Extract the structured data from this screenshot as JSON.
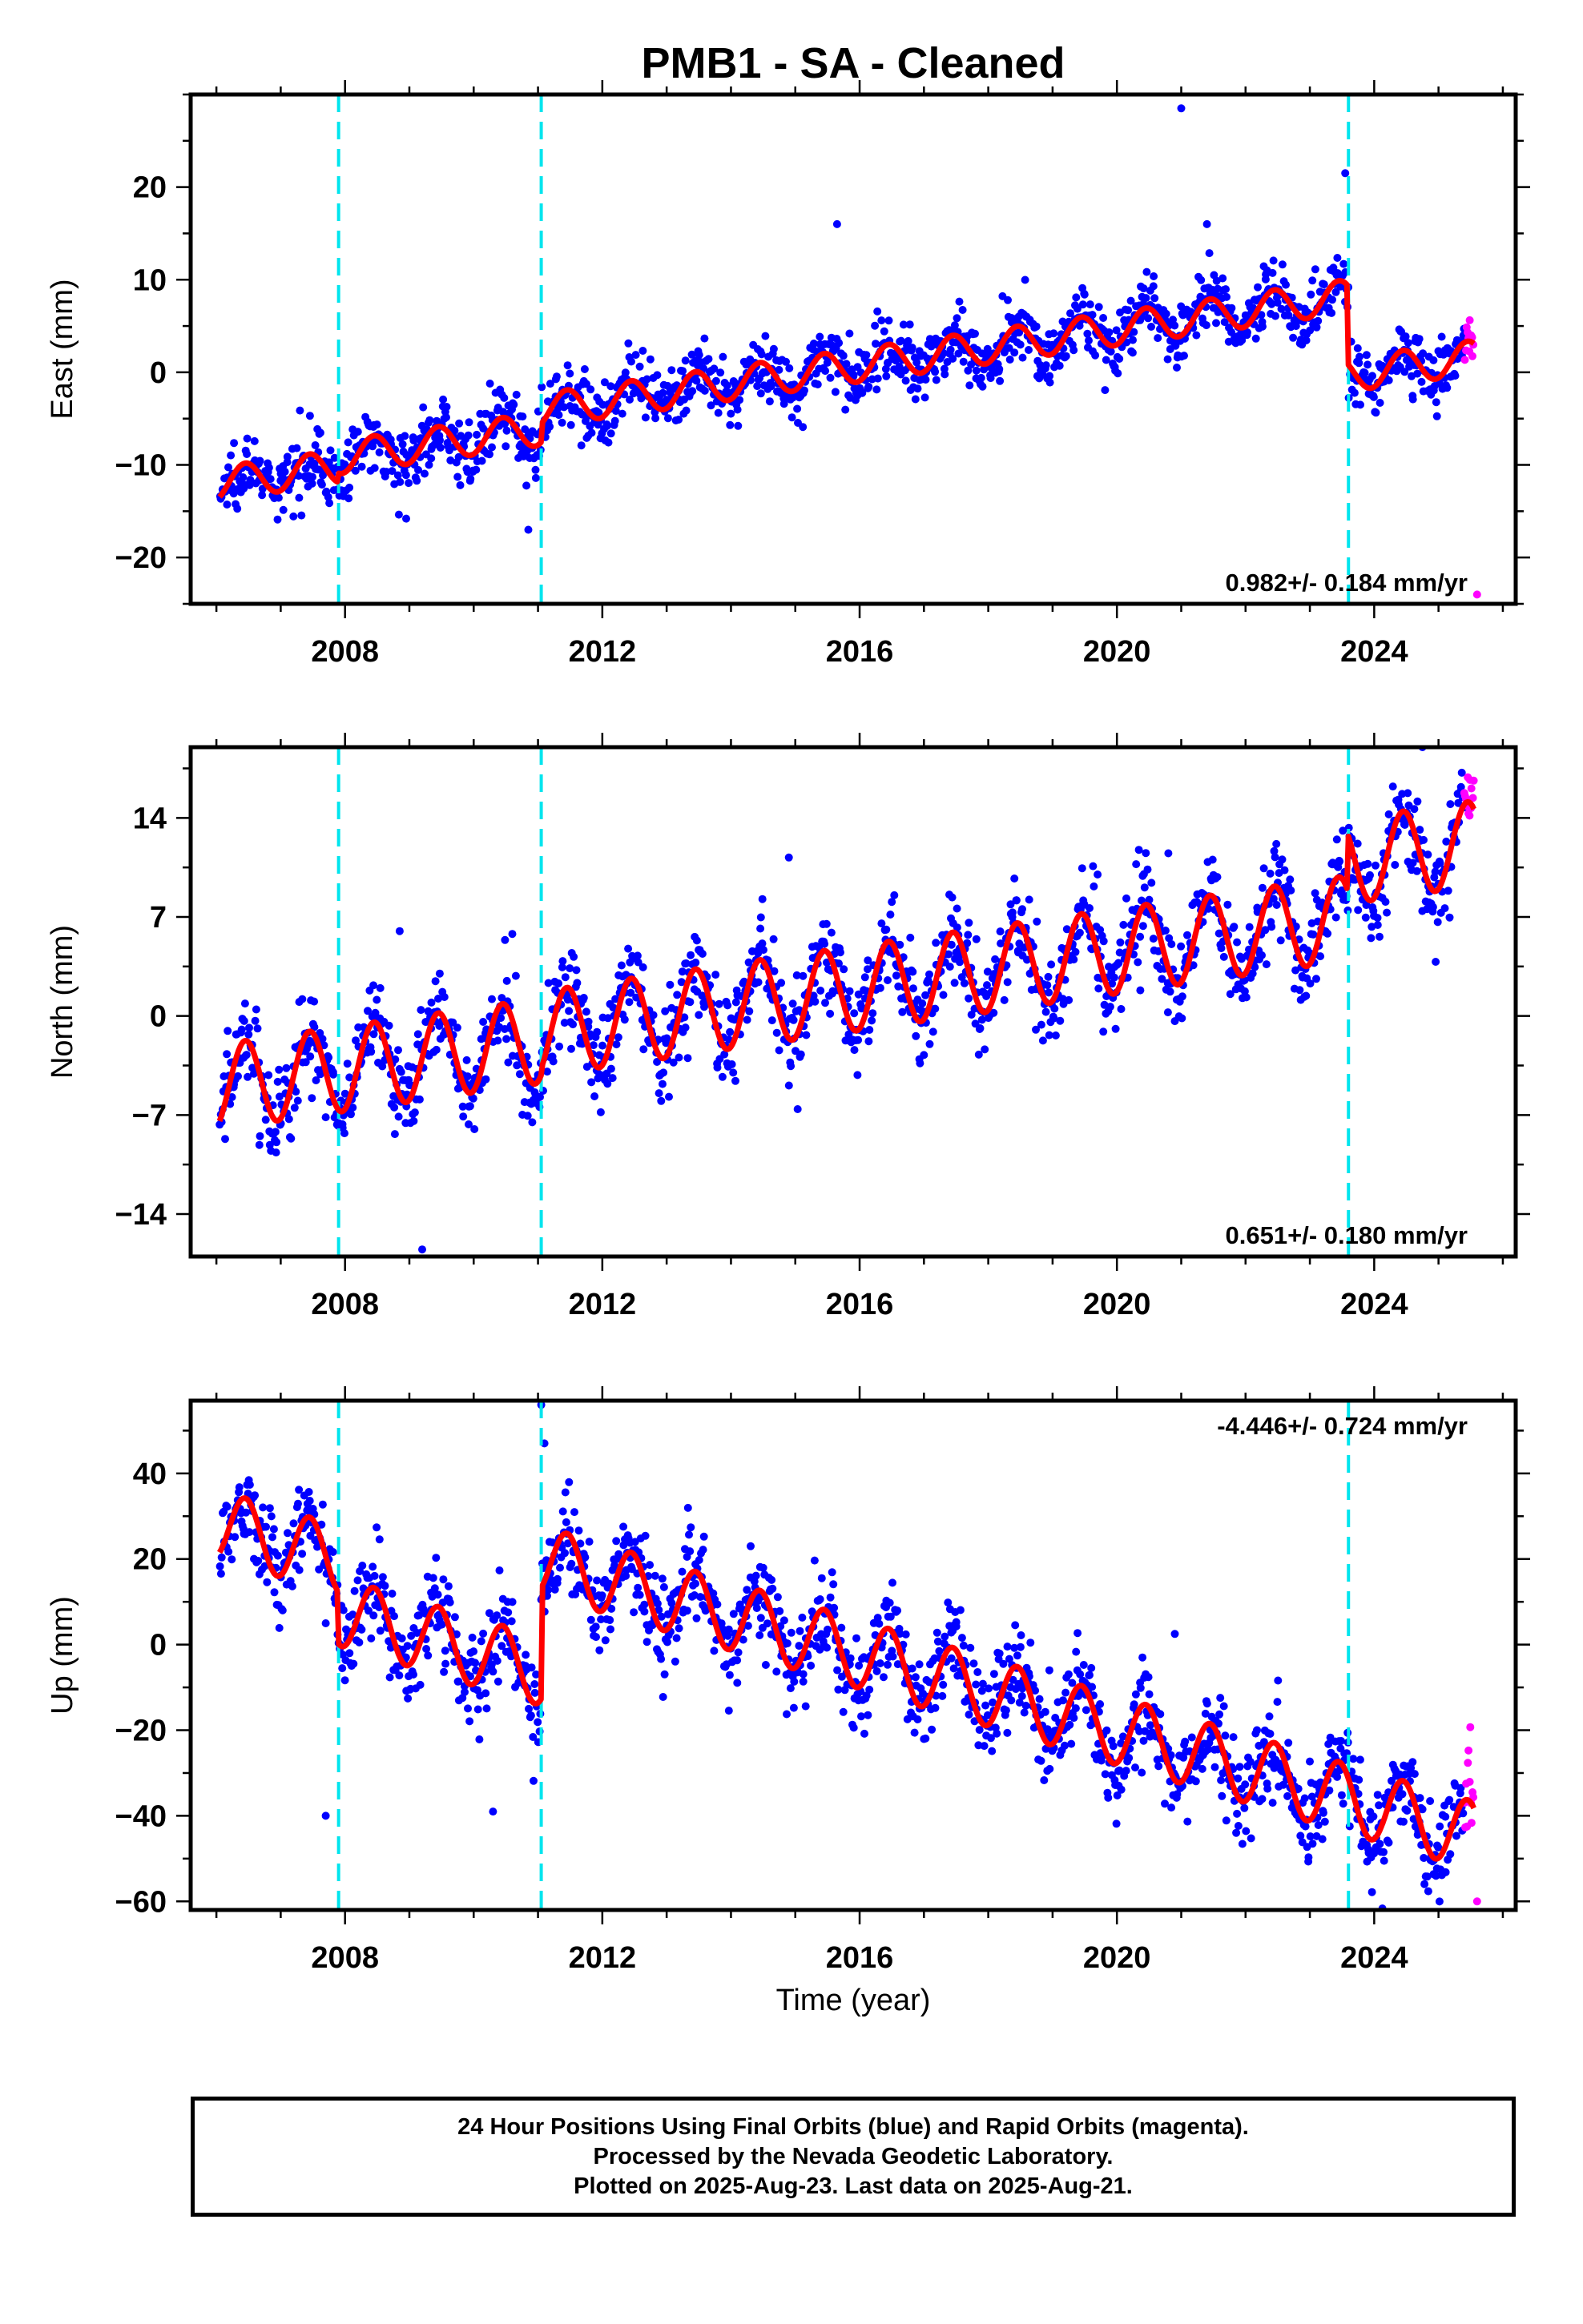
{
  "title": "PMB1  - SA - Cleaned",
  "xlabel": "Time (year)",
  "colors": {
    "final_orbits": "#0000ff",
    "rapid_orbits": "#ff00ff",
    "fit": "#ff0000",
    "break_lines": "#00e5ee"
  },
  "footer": {
    "line1": "24 Hour Positions Using Final Orbits (blue) and Rapid Orbits (magenta).",
    "line2": "Processed by the Nevada Geodetic Laboratory.",
    "line3": "Plotted on 2025-Aug-23. Last data on 2025-Aug-21."
  },
  "chart_data": [
    {
      "type": "scatter",
      "component": "east",
      "ylabel": "East (mm)",
      "rate_label": "0.982+/- 0.184 mm/yr",
      "rate_position": "bottom-right",
      "xlim": [
        2005.6,
        2026.2
      ],
      "ylim": [
        -25,
        30
      ],
      "xticks": [
        2008,
        2012,
        2016,
        2020,
        2024
      ],
      "yticks": [
        -20,
        -10,
        0,
        10,
        20
      ],
      "x_tick_labels": [
        "2008",
        "2012",
        "2016",
        "2020",
        "2024"
      ],
      "y_tick_labels": [
        "−20",
        "−10",
        "0",
        "10",
        "20"
      ],
      "break_lines_x": [
        2007.9,
        2011.05,
        2023.6
      ],
      "data_range": [
        2006.05,
        2025.55
      ],
      "rapid_start": 2025.4,
      "fit_start": [
        2006.05,
        -12
      ],
      "fit_rate": 0.982,
      "fit_seasonal_amplitude": 1.8,
      "fit_offsets": [
        [
          2007.9,
          1.0
        ],
        [
          2011.05,
          2.0
        ],
        [
          2023.6,
          -8.5
        ]
      ],
      "scatter_std": 1.7,
      "outliers": [
        [
          2021.0,
          28.5
        ],
        [
          2023.55,
          21.5
        ],
        [
          2015.65,
          16.0
        ],
        [
          2021.4,
          16.0
        ],
        [
          2010.85,
          -17.0
        ],
        [
          2025.6,
          -24.0
        ],
        [
          2008.95,
          -15.8
        ]
      ],
      "series": [
        {
          "name": "Final Orbits (blue)",
          "role": "final"
        },
        {
          "name": "Rapid Orbits (magenta)",
          "role": "rapid"
        },
        {
          "name": "",
          "role": "fit"
        }
      ]
    },
    {
      "type": "scatter",
      "component": "north",
      "ylabel": "North (mm)",
      "rate_label": "0.651+/- 0.180 mm/yr",
      "rate_position": "bottom-right",
      "xlim": [
        2005.6,
        2026.2
      ],
      "ylim": [
        -17,
        19
      ],
      "xticks": [
        2008,
        2012,
        2016,
        2020,
        2024
      ],
      "yticks": [
        -14,
        -7,
        0,
        7,
        14
      ],
      "x_tick_labels": [
        "2008",
        "2012",
        "2016",
        "2020",
        "2024"
      ],
      "y_tick_labels": [
        "−14",
        "−7",
        "0",
        "7",
        "14"
      ],
      "break_lines_x": [
        2007.9,
        2011.05,
        2023.6
      ],
      "data_range": [
        2006.05,
        2025.55
      ],
      "rapid_start": 2025.4,
      "fit_start": [
        2006.05,
        -5
      ],
      "fit_rate": 0.651,
      "fit_seasonal_amplitude": 3.0,
      "fit_offsets": [
        [
          2007.9,
          0.0
        ],
        [
          2011.05,
          0.5
        ],
        [
          2023.6,
          4.0
        ]
      ],
      "scatter_std": 1.7,
      "outliers": [
        [
          2024.75,
          19.0
        ],
        [
          2009.2,
          -16.5
        ],
        [
          2014.9,
          11.2
        ],
        [
          2008.85,
          6.0
        ],
        [
          2010.6,
          5.8
        ],
        [
          2020.8,
          11.5
        ],
        [
          2019.7,
          10.0
        ]
      ],
      "series": [
        {
          "name": "Final Orbits (blue)",
          "role": "final"
        },
        {
          "name": "Rapid Orbits (magenta)",
          "role": "rapid"
        },
        {
          "name": "",
          "role": "fit"
        }
      ]
    },
    {
      "type": "scatter",
      "component": "up",
      "ylabel": "Up (mm)",
      "rate_label": "-4.446+/- 0.724 mm/yr",
      "rate_position": "top-right",
      "xlim": [
        2005.6,
        2026.2
      ],
      "ylim": [
        -62,
        57
      ],
      "xticks": [
        2008,
        2012,
        2016,
        2020,
        2024
      ],
      "yticks": [
        -60,
        -40,
        -20,
        0,
        20,
        40
      ],
      "x_tick_labels": [
        "2008",
        "2012",
        "2016",
        "2020",
        "2024"
      ],
      "y_tick_labels": [
        "−60",
        "−40",
        "−20",
        "0",
        "20",
        "40"
      ],
      "break_lines_x": [
        2007.9,
        2011.05,
        2023.6
      ],
      "data_range": [
        2006.05,
        2025.55
      ],
      "rapid_start": 2025.4,
      "fit_start": [
        2006.05,
        28
      ],
      "fit_rate": -4.446,
      "fit_seasonal_amplitude": 8.0,
      "fit_offsets": [
        [
          2007.9,
          -12.0
        ],
        [
          2011.05,
          26.0
        ],
        [
          2023.6,
          0.0
        ]
      ],
      "scatter_std": 5.5,
      "outliers": [
        [
          2011.05,
          56.0
        ],
        [
          2011.1,
          47.0
        ],
        [
          2007.7,
          -40.0
        ],
        [
          2010.3,
          -39.0
        ],
        [
          2025.6,
          -60.0
        ],
        [
          2020.9,
          2.5
        ],
        [
          2018.95,
          -6.0
        ]
      ],
      "series": [
        {
          "name": "Final Orbits (blue)",
          "role": "final"
        },
        {
          "name": "Rapid Orbits (magenta)",
          "role": "rapid"
        },
        {
          "name": "",
          "role": "fit"
        }
      ]
    }
  ]
}
